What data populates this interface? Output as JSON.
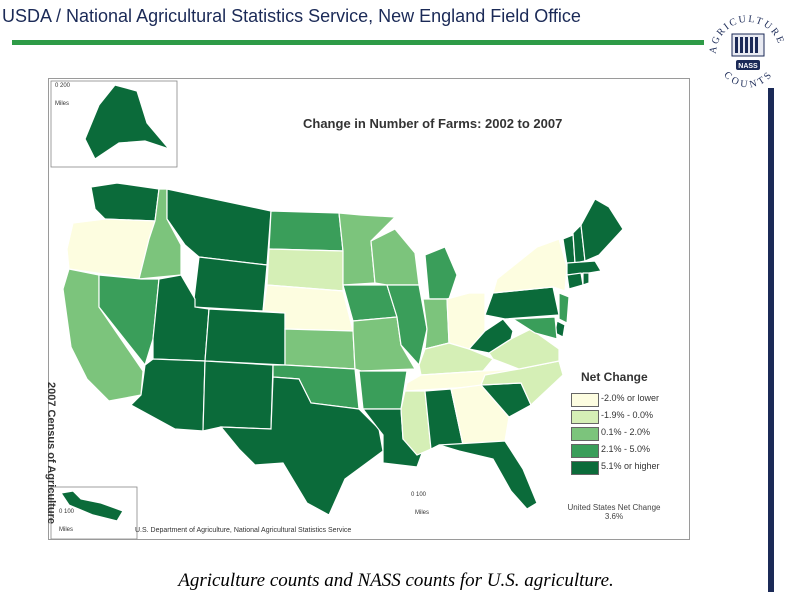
{
  "header": {
    "title": "USDA / National Agricultural Statistics Service, New England Field Office",
    "rule_color": "#2e9b47"
  },
  "logo": {
    "arc_top": "AGRICULTURE",
    "arc_bottom": "COUNTS",
    "badge": "NASS"
  },
  "map": {
    "title": "Change in Number of Farms:  2002 to 2007",
    "vertical_label": "2007 Census of Agriculture",
    "credit": "U.S. Department of Agriculture, National Agricultural Statistics Service",
    "alaska_scale": {
      "value": "0  200",
      "unit": "Miles"
    },
    "hawaii_scale": {
      "value": "0     100",
      "unit": "Miles"
    },
    "main_scale": {
      "value": "0   100",
      "unit": "Miles"
    },
    "legend": {
      "title": "Net Change",
      "classes": [
        {
          "label": "-2.0% or lower",
          "color": "#fdfde0"
        },
        {
          "label": "-1.9% - 0.0%",
          "color": "#d5efb6"
        },
        {
          "label": "0.1% - 2.0%",
          "color": "#7cc47c"
        },
        {
          "label": "2.1% - 5.0%",
          "color": "#3a9e5a"
        },
        {
          "label": "5.1% or higher",
          "color": "#0b6b3a"
        }
      ]
    },
    "us_net_change_label": "United States Net Change",
    "us_net_change_value": "3.6%",
    "state_classes": {
      "WA": 4,
      "OR": 0,
      "ID": 2,
      "MT": 4,
      "WY": 4,
      "CA": 2,
      "NV": 3,
      "UT": 4,
      "AZ": 4,
      "CO": 4,
      "NM": 4,
      "ND": 3,
      "SD": 1,
      "NE": 0,
      "KS": 2,
      "OK": 3,
      "TX": 4,
      "MN": 2,
      "IA": 3,
      "MO": 2,
      "AR": 3,
      "LA": 4,
      "WI": 2,
      "IL": 3,
      "MI": 3,
      "IN": 2,
      "OH": 0,
      "KY": 1,
      "TN": 0,
      "MS": 1,
      "AL": 4,
      "GA": 0,
      "FL": 4,
      "SC": 4,
      "NC": 1,
      "VA": 1,
      "WV": 4,
      "PA": 4,
      "NY": 0,
      "VT": 4,
      "NH": 4,
      "ME": 4,
      "MA": 4,
      "CT": 4,
      "RI": 4,
      "NJ": 3,
      "DE": 4,
      "MD": 3,
      "AK": 4,
      "HI": 4
    }
  },
  "caption": "Agriculture counts and NASS counts for U.S. agriculture."
}
